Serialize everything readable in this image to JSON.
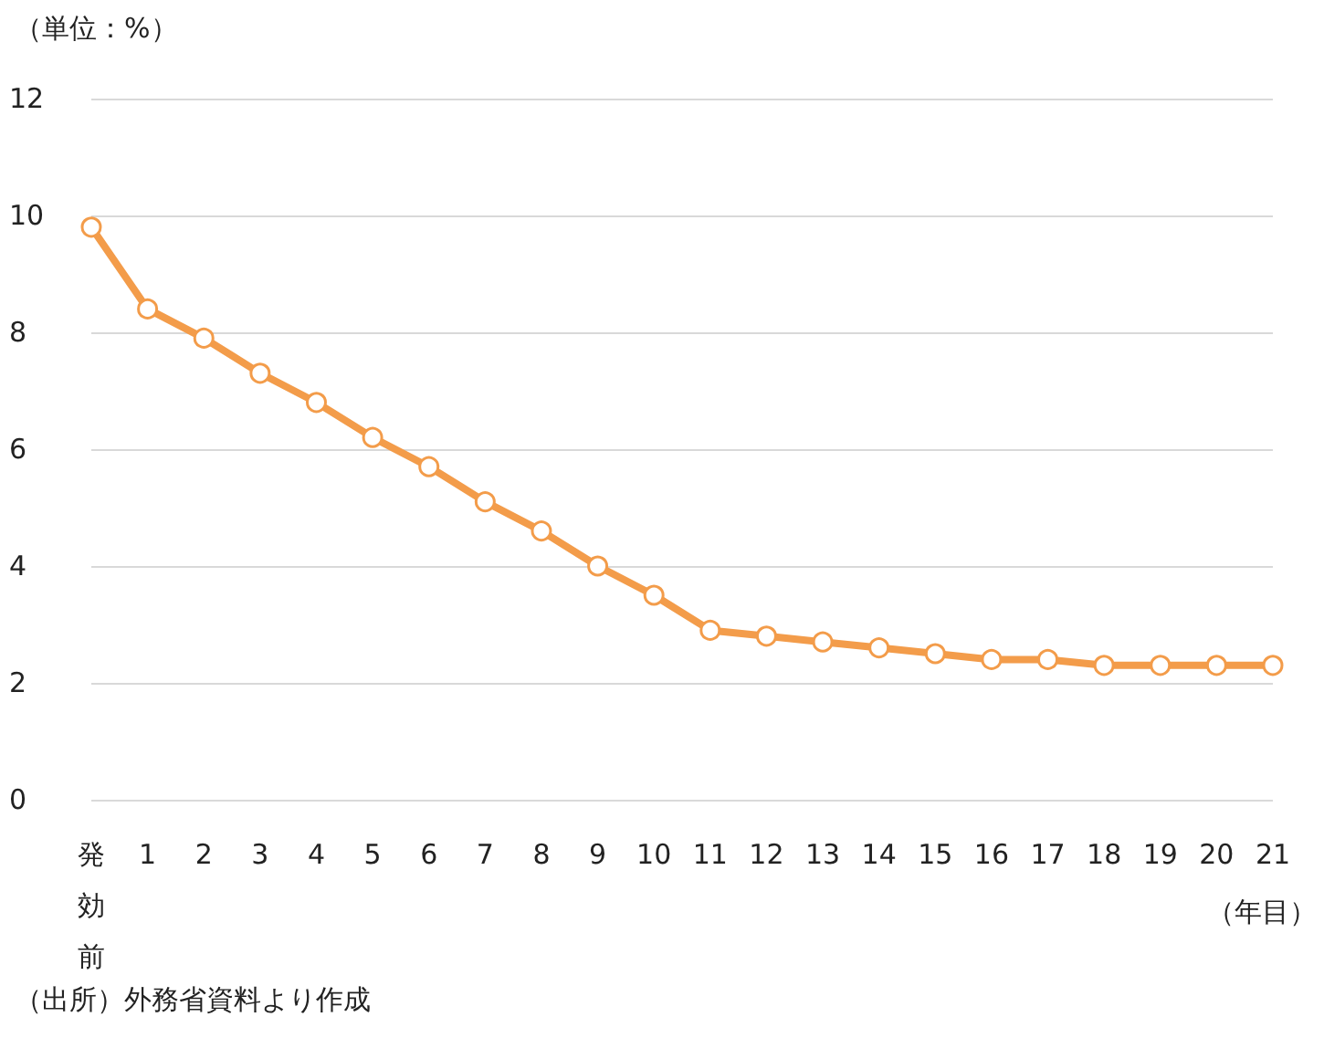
{
  "chart_data": {
    "type": "line",
    "ylabel": "（単位：%）",
    "xlabel": "（年目）",
    "annotations": [
      "（出所）外務省資料より作成"
    ],
    "categories": [
      "発効前",
      "1",
      "2",
      "3",
      "4",
      "5",
      "6",
      "7",
      "8",
      "9",
      "10",
      "11",
      "12",
      "13",
      "14",
      "15",
      "16",
      "17",
      "18",
      "19",
      "20",
      "21"
    ],
    "series": [
      {
        "color": "#f39c4a",
        "values": [
          9.8,
          8.4,
          7.9,
          7.3,
          6.8,
          6.2,
          5.7,
          5.1,
          4.6,
          4.0,
          3.5,
          2.9,
          2.8,
          2.7,
          2.6,
          2.5,
          2.4,
          2.4,
          2.3,
          2.3,
          2.3,
          2.3
        ]
      }
    ],
    "ylim": [
      0,
      12
    ],
    "yticks": [
      0,
      2,
      4,
      6,
      8,
      10,
      12
    ],
    "grid": "y",
    "marker": "circle",
    "line_style": "solid"
  }
}
